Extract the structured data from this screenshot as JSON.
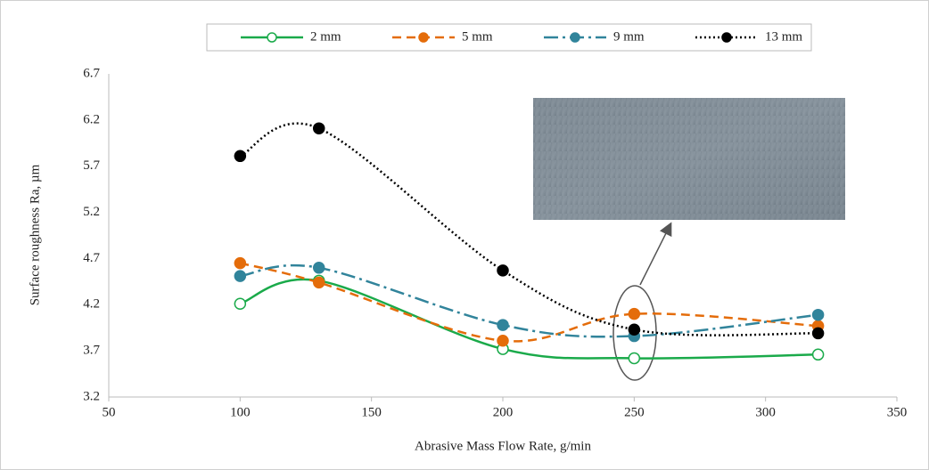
{
  "chart_data": {
    "type": "line",
    "x_label": "Abrasive Mass Flow Rate, g/min",
    "y_label": "Surface roughness Ra, µm",
    "x": [
      100,
      130,
      200,
      250,
      320
    ],
    "series": [
      {
        "name": "2 mm",
        "color": "#1aaa4a",
        "values": [
          4.21,
          4.46,
          3.72,
          3.62,
          3.66
        ]
      },
      {
        "name": "5 mm",
        "color": "#e46c0a",
        "values": [
          4.65,
          4.44,
          3.81,
          4.1,
          3.97
        ]
      },
      {
        "name": "9 mm",
        "color": "#31849b",
        "values": [
          4.51,
          4.6,
          3.98,
          3.86,
          4.09
        ]
      },
      {
        "name": "13 mm",
        "color": "#000000",
        "values": [
          5.81,
          6.11,
          4.57,
          3.93,
          3.89
        ]
      }
    ],
    "xlim": [
      50,
      350
    ],
    "xticks": [
      50,
      100,
      150,
      200,
      250,
      300,
      350
    ],
    "ylim": [
      3.2,
      6.7
    ],
    "yticks": [
      3.2,
      3.7,
      4.2,
      4.7,
      5.2,
      5.7,
      6.2,
      6.7
    ],
    "legend": "top",
    "grid": false
  }
}
